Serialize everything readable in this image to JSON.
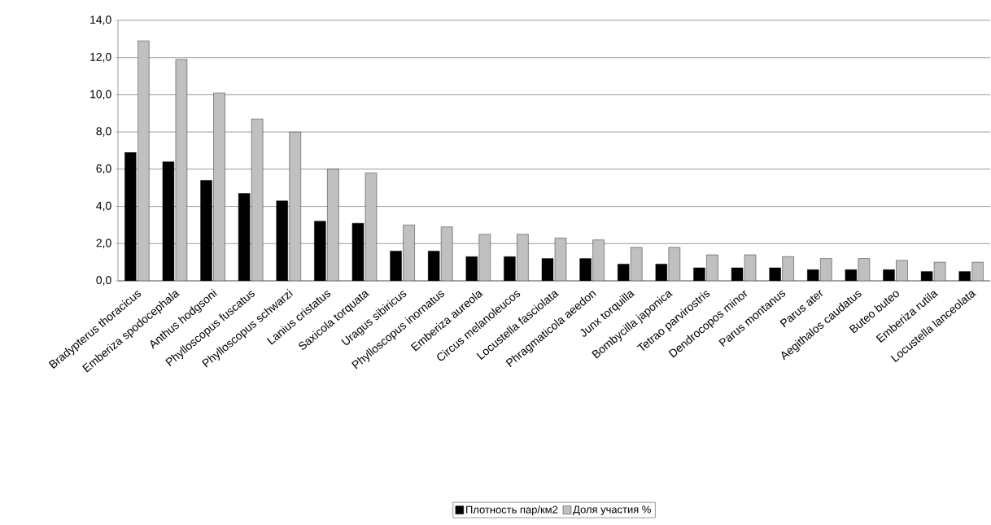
{
  "chart_data": {
    "type": "bar",
    "categories": [
      "Bradypterus thoracicus",
      "Emberiza spodocephala",
      "Anthus hodgsoni",
      "Phylloscopus fuscatus",
      "Phylloscopus schwarzi",
      "Lanius cristatus",
      "Saxicola torquata",
      "Uragus sibiricus",
      "Phylloscopus inornatus",
      "Emberiza aureola",
      "Circus melanoleucos",
      "Locustella fasciolata",
      "Phragmaticola aeedon",
      "Junx torquilla",
      "Bombycilla japonica",
      "Tetrao parvirostris",
      "Dendrocopos minor",
      "Parus montanus",
      "Parus ater",
      "Aegithalos caudatus",
      "Buteo buteo",
      "Emberiza rutila",
      "Locustella lanceolata"
    ],
    "series": [
      {
        "name": "Плотность пар/км2",
        "color": "#000000",
        "values": [
          6.9,
          6.4,
          5.4,
          4.7,
          4.3,
          3.2,
          3.1,
          1.6,
          1.6,
          1.3,
          1.3,
          1.2,
          1.2,
          0.9,
          0.9,
          0.7,
          0.7,
          0.7,
          0.6,
          0.6,
          0.6,
          0.5,
          0.5
        ]
      },
      {
        "name": "Доля участия %",
        "color": "#c0c0c0",
        "values": [
          12.9,
          11.9,
          10.1,
          8.7,
          8.0,
          6.0,
          5.8,
          3.0,
          2.9,
          2.5,
          2.5,
          2.3,
          2.2,
          1.8,
          1.8,
          1.4,
          1.4,
          1.3,
          1.2,
          1.2,
          1.1,
          1.0,
          1.0
        ]
      }
    ],
    "ylim": [
      0,
      14
    ],
    "yticks": [
      {
        "value": 0,
        "label": "0,0"
      },
      {
        "value": 2,
        "label": "2,0"
      },
      {
        "value": 4,
        "label": "4,0"
      },
      {
        "value": 6,
        "label": "6,0"
      },
      {
        "value": 8,
        "label": "8,0"
      },
      {
        "value": 10,
        "label": "10,0"
      },
      {
        "value": 12,
        "label": "12,0"
      },
      {
        "value": 14,
        "label": "14,0"
      }
    ],
    "grid": "y",
    "legend": "bottom"
  }
}
